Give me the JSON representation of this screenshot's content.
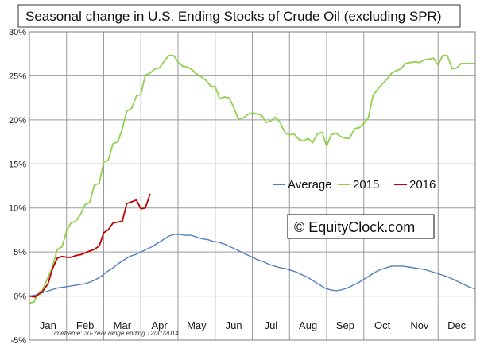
{
  "chart_data": {
    "type": "line",
    "title": "Seasonal change in U.S. Ending Stocks of Crude Oil (excluding SPR)",
    "xlabel": "",
    "ylabel": "",
    "y_ticks": [
      "30%",
      "25%",
      "20%",
      "15%",
      "10%",
      "5%",
      "0%",
      "-5%"
    ],
    "ylim": [
      -5,
      30
    ],
    "categories": [
      "Jan",
      "Feb",
      "Mar",
      "Apr",
      "May",
      "Jun",
      "Jul",
      "Aug",
      "Sep",
      "Oct",
      "Nov",
      "Dec"
    ],
    "grid": true,
    "legend_position": "middle-right",
    "footnote": "Timeframe: 30-Year range ending 12/31/2014",
    "watermark": "© EquityClock.com",
    "series": [
      {
        "name": "Average",
        "color": "#4f81bd",
        "x": [
          0,
          0.15,
          0.3,
          0.45,
          0.6,
          0.75,
          0.9,
          1.05,
          1.2,
          1.35,
          1.5,
          1.65,
          1.8,
          1.95,
          2.1,
          2.25,
          2.4,
          2.55,
          2.7,
          2.85,
          3.0,
          3.15,
          3.3,
          3.45,
          3.6,
          3.75,
          3.9,
          4.05,
          4.2,
          4.35,
          4.5,
          4.65,
          4.8,
          4.95,
          5.1,
          5.25,
          5.4,
          5.55,
          5.7,
          5.85,
          6.0,
          6.15,
          6.3,
          6.45,
          6.6,
          6.75,
          6.9,
          7.05,
          7.2,
          7.35,
          7.5,
          7.65,
          7.8,
          7.95,
          8.1,
          8.25,
          8.4,
          8.55,
          8.7,
          8.85,
          9.0,
          9.15,
          9.3,
          9.45,
          9.6,
          9.75,
          9.9,
          10.05,
          10.2,
          10.35,
          10.5,
          10.65,
          10.8,
          10.95,
          11.1,
          11.25,
          11.4,
          11.55,
          11.7,
          11.85,
          12.0
        ],
        "values": [
          0.0,
          0.1,
          0.3,
          0.5,
          0.7,
          0.9,
          1.0,
          1.1,
          1.2,
          1.3,
          1.4,
          1.6,
          1.9,
          2.3,
          2.8,
          3.2,
          3.7,
          4.1,
          4.5,
          4.7,
          5.0,
          5.3,
          5.6,
          6.0,
          6.4,
          6.8,
          7.0,
          7.0,
          6.9,
          6.9,
          6.7,
          6.5,
          6.4,
          6.2,
          6.1,
          5.9,
          5.6,
          5.3,
          5.0,
          4.7,
          4.4,
          4.1,
          3.9,
          3.6,
          3.4,
          3.2,
          3.1,
          2.9,
          2.7,
          2.4,
          2.1,
          1.7,
          1.3,
          0.9,
          0.7,
          0.6,
          0.7,
          0.9,
          1.2,
          1.5,
          1.9,
          2.3,
          2.7,
          3.0,
          3.2,
          3.4,
          3.4,
          3.4,
          3.3,
          3.2,
          3.1,
          3.0,
          2.8,
          2.6,
          2.4,
          2.2,
          1.9,
          1.6,
          1.3,
          1.0,
          0.8
        ]
      },
      {
        "name": "2015",
        "color": "#92d050",
        "x": [
          0,
          0.12,
          0.25,
          0.35,
          0.5,
          0.62,
          0.75,
          0.88,
          1.0,
          1.12,
          1.25,
          1.38,
          1.5,
          1.62,
          1.75,
          1.88,
          2.0,
          2.12,
          2.25,
          2.38,
          2.5,
          2.62,
          2.75,
          2.88,
          3.0,
          3.12,
          3.25,
          3.38,
          3.5,
          3.62,
          3.75,
          3.88,
          4.0,
          4.12,
          4.25,
          4.38,
          4.5,
          4.62,
          4.75,
          4.88,
          5.0,
          5.12,
          5.25,
          5.38,
          5.5,
          5.62,
          5.75,
          5.88,
          6.0,
          6.12,
          6.25,
          6.38,
          6.5,
          6.62,
          6.75,
          6.88,
          7.0,
          7.12,
          7.25,
          7.38,
          7.5,
          7.62,
          7.75,
          7.88,
          8.0,
          8.12,
          8.25,
          8.38,
          8.5,
          8.62,
          8.75,
          8.88,
          9.0,
          9.12,
          9.25,
          9.38,
          9.5,
          9.62,
          9.75,
          9.88,
          10.0,
          10.12,
          10.25,
          10.38,
          10.5,
          10.62,
          10.75,
          10.88,
          11.0,
          11.12,
          11.25,
          11.38,
          11.5,
          11.62,
          11.75,
          11.88,
          12.0
        ],
        "values": [
          -0.8,
          -0.7,
          0.4,
          0.7,
          2.1,
          3.3,
          5.3,
          5.6,
          7.4,
          8.3,
          8.5,
          9.3,
          10.4,
          10.6,
          12.6,
          12.8,
          15.2,
          15.4,
          17.3,
          17.5,
          19.0,
          21.0,
          21.3,
          22.7,
          22.9,
          25.1,
          25.3,
          25.8,
          25.9,
          26.6,
          27.3,
          27.3,
          26.6,
          26.1,
          26.0,
          25.7,
          25.2,
          24.9,
          24.5,
          23.8,
          23.8,
          22.4,
          22.6,
          22.5,
          21.4,
          20.1,
          20.2,
          20.6,
          20.8,
          20.7,
          20.5,
          19.7,
          19.9,
          20.3,
          19.7,
          18.5,
          18.3,
          18.4,
          17.8,
          17.6,
          17.9,
          17.4,
          18.4,
          18.6,
          17.0,
          18.3,
          18.5,
          18.1,
          17.9,
          17.9,
          19.0,
          19.1,
          19.6,
          20.2,
          22.8,
          23.5,
          24.1,
          24.6,
          25.3,
          25.6,
          25.8,
          26.4,
          26.5,
          26.6,
          26.5,
          26.8,
          26.9,
          27.0,
          26.2,
          27.3,
          27.3,
          25.8,
          25.9,
          26.4,
          26.4,
          26.4,
          26.4
        ]
      },
      {
        "name": "2016",
        "color": "#c00000",
        "x": [
          0,
          0.15,
          0.25,
          0.35,
          0.5,
          0.62,
          0.75,
          0.88,
          1.0,
          1.12,
          1.25,
          1.38,
          1.5,
          1.62,
          1.75,
          1.88,
          2.0,
          2.12,
          2.25,
          2.38,
          2.5,
          2.62,
          2.75,
          2.88,
          3.0,
          3.12,
          3.25
        ],
        "values": [
          0.0,
          -0.1,
          0.2,
          0.5,
          1.4,
          3.1,
          4.3,
          4.5,
          4.4,
          4.4,
          4.6,
          4.7,
          4.9,
          5.1,
          5.3,
          5.7,
          7.2,
          7.5,
          8.3,
          8.4,
          8.5,
          10.5,
          10.7,
          10.9,
          9.9,
          10.0,
          11.6
        ]
      }
    ]
  }
}
